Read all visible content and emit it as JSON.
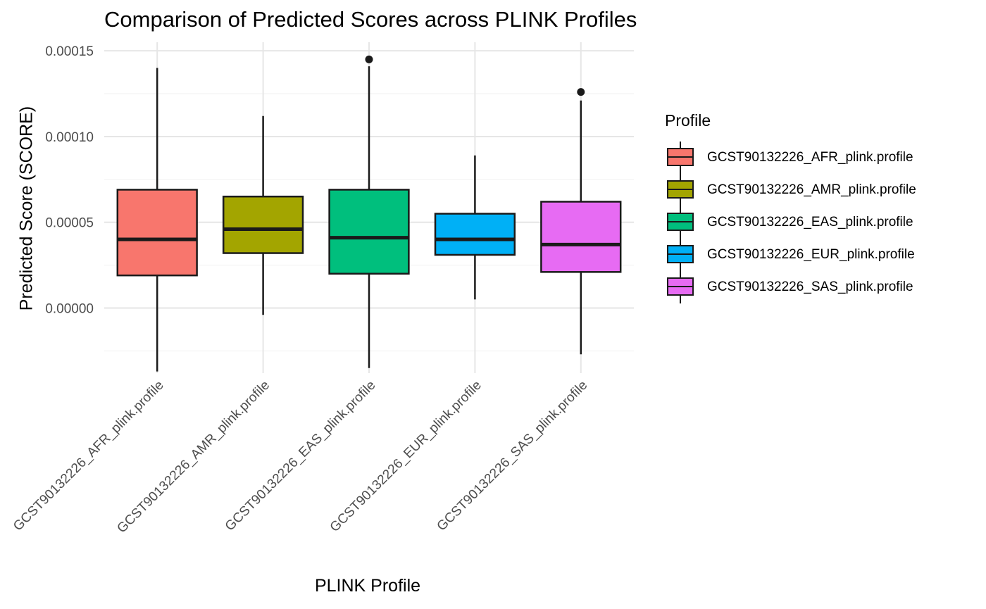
{
  "chart_data": {
    "type": "box",
    "title": "Comparison of Predicted Scores across PLINK Profiles",
    "xlabel": "PLINK Profile",
    "ylabel": "Predicted Score (SCORE)",
    "ylim": [
      -3.8e-05,
      0.000155
    ],
    "yticks": [
      0,
      5e-05,
      0.0001,
      0.00015
    ],
    "ytick_labels": [
      "0.00000",
      "0.00005",
      "0.00010",
      "0.00015"
    ],
    "grid": true,
    "legend": {
      "title": "Profile",
      "position": "right"
    },
    "categories": [
      "GCST90132226_AFR_plink.profile",
      "GCST90132226_AMR_plink.profile",
      "GCST90132226_EAS_plink.profile",
      "GCST90132226_EUR_plink.profile",
      "GCST90132226_SAS_plink.profile"
    ],
    "boxes": [
      {
        "name": "GCST90132226_AFR_plink.profile",
        "color": "#F8766D",
        "whisker_low": -3.7e-05,
        "q1": 1.9e-05,
        "median": 4e-05,
        "q3": 6.9e-05,
        "whisker_high": 0.00014,
        "outliers": []
      },
      {
        "name": "GCST90132226_AMR_plink.profile",
        "color": "#A3A500",
        "whisker_low": -4e-06,
        "q1": 3.2e-05,
        "median": 4.6e-05,
        "q3": 6.5e-05,
        "whisker_high": 0.000112,
        "outliers": []
      },
      {
        "name": "GCST90132226_EAS_plink.profile",
        "color": "#00BF7D",
        "whisker_low": -3.5e-05,
        "q1": 2e-05,
        "median": 4.1e-05,
        "q3": 6.9e-05,
        "whisker_high": 0.000141,
        "outliers": [
          0.000145
        ]
      },
      {
        "name": "GCST90132226_EUR_plink.profile",
        "color": "#00B0F6",
        "whisker_low": 5e-06,
        "q1": 3.1e-05,
        "median": 4e-05,
        "q3": 5.5e-05,
        "whisker_high": 8.9e-05,
        "outliers": []
      },
      {
        "name": "GCST90132226_SAS_plink.profile",
        "color": "#E76BF3",
        "whisker_low": -2.7e-05,
        "q1": 2.1e-05,
        "median": 3.7e-05,
        "q3": 6.2e-05,
        "whisker_high": 0.000121,
        "outliers": [
          0.000126
        ]
      }
    ]
  }
}
